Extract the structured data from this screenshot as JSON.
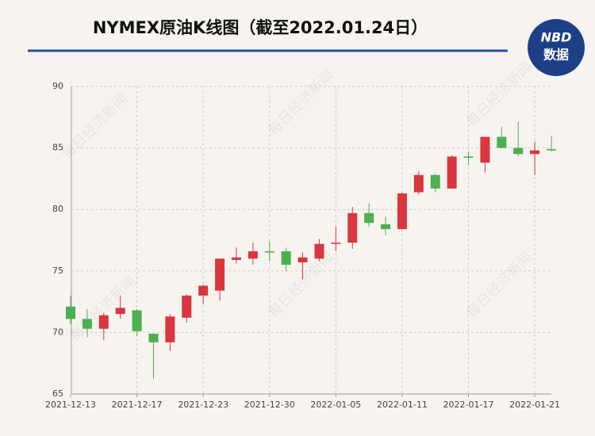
{
  "header": {
    "title": "NYMEX原油K线图（截至2022.01.24日）",
    "logo_top": "NBD",
    "logo_bottom": "数据"
  },
  "chart_data": {
    "type": "candlestick",
    "watermark": "每日经济新闻",
    "categories": [
      "2021-12-13",
      null,
      null,
      null,
      "2021-12-17",
      null,
      null,
      null,
      "2021-12-23",
      null,
      null,
      null,
      "2021-12-30",
      null,
      null,
      null,
      "2022-01-05",
      null,
      null,
      null,
      "2022-01-11",
      null,
      null,
      null,
      "2022-01-17",
      null,
      null,
      null,
      "2022-01-21",
      null
    ],
    "open": [
      72.1,
      71.1,
      70.3,
      71.5,
      71.8,
      69.9,
      69.2,
      71.2,
      73.0,
      73.4,
      75.9,
      76.0,
      76.6,
      76.6,
      75.7,
      76.0,
      77.2,
      77.3,
      79.7,
      78.8,
      78.4,
      81.4,
      82.8,
      81.7,
      84.3,
      83.8,
      85.9,
      85.0,
      84.5,
      84.9
    ],
    "high": [
      73.0,
      71.9,
      71.6,
      73.0,
      71.9,
      69.9,
      71.5,
      73.1,
      73.9,
      76.0,
      76.9,
      77.3,
      77.4,
      76.9,
      76.5,
      77.6,
      78.6,
      80.2,
      80.5,
      79.4,
      81.4,
      83.1,
      82.9,
      84.4,
      84.7,
      85.9,
      86.7,
      87.1,
      85.5,
      86.0
    ],
    "low": [
      70.7,
      69.6,
      69.4,
      71.1,
      69.7,
      66.2,
      68.5,
      70.8,
      72.3,
      72.6,
      75.6,
      75.5,
      75.8,
      75.0,
      74.3,
      75.8,
      76.6,
      76.8,
      78.6,
      77.9,
      78.4,
      81.2,
      81.4,
      81.7,
      83.6,
      83.0,
      85.0,
      84.3,
      82.8,
      84.7
    ],
    "close": [
      71.1,
      70.3,
      71.4,
      72.0,
      70.1,
      69.2,
      71.3,
      73.0,
      73.8,
      76.0,
      76.1,
      76.6,
      76.5,
      75.5,
      76.1,
      77.2,
      77.3,
      79.7,
      78.9,
      78.4,
      81.3,
      82.8,
      81.7,
      84.3,
      84.2,
      85.9,
      85.0,
      84.5,
      84.8,
      84.8
    ],
    "up_color": "#d9363e",
    "down_color": "#4caf50",
    "ylim": [
      65,
      90
    ],
    "yticks": [
      65,
      70,
      75,
      80,
      85,
      90
    ],
    "grid": true
  }
}
